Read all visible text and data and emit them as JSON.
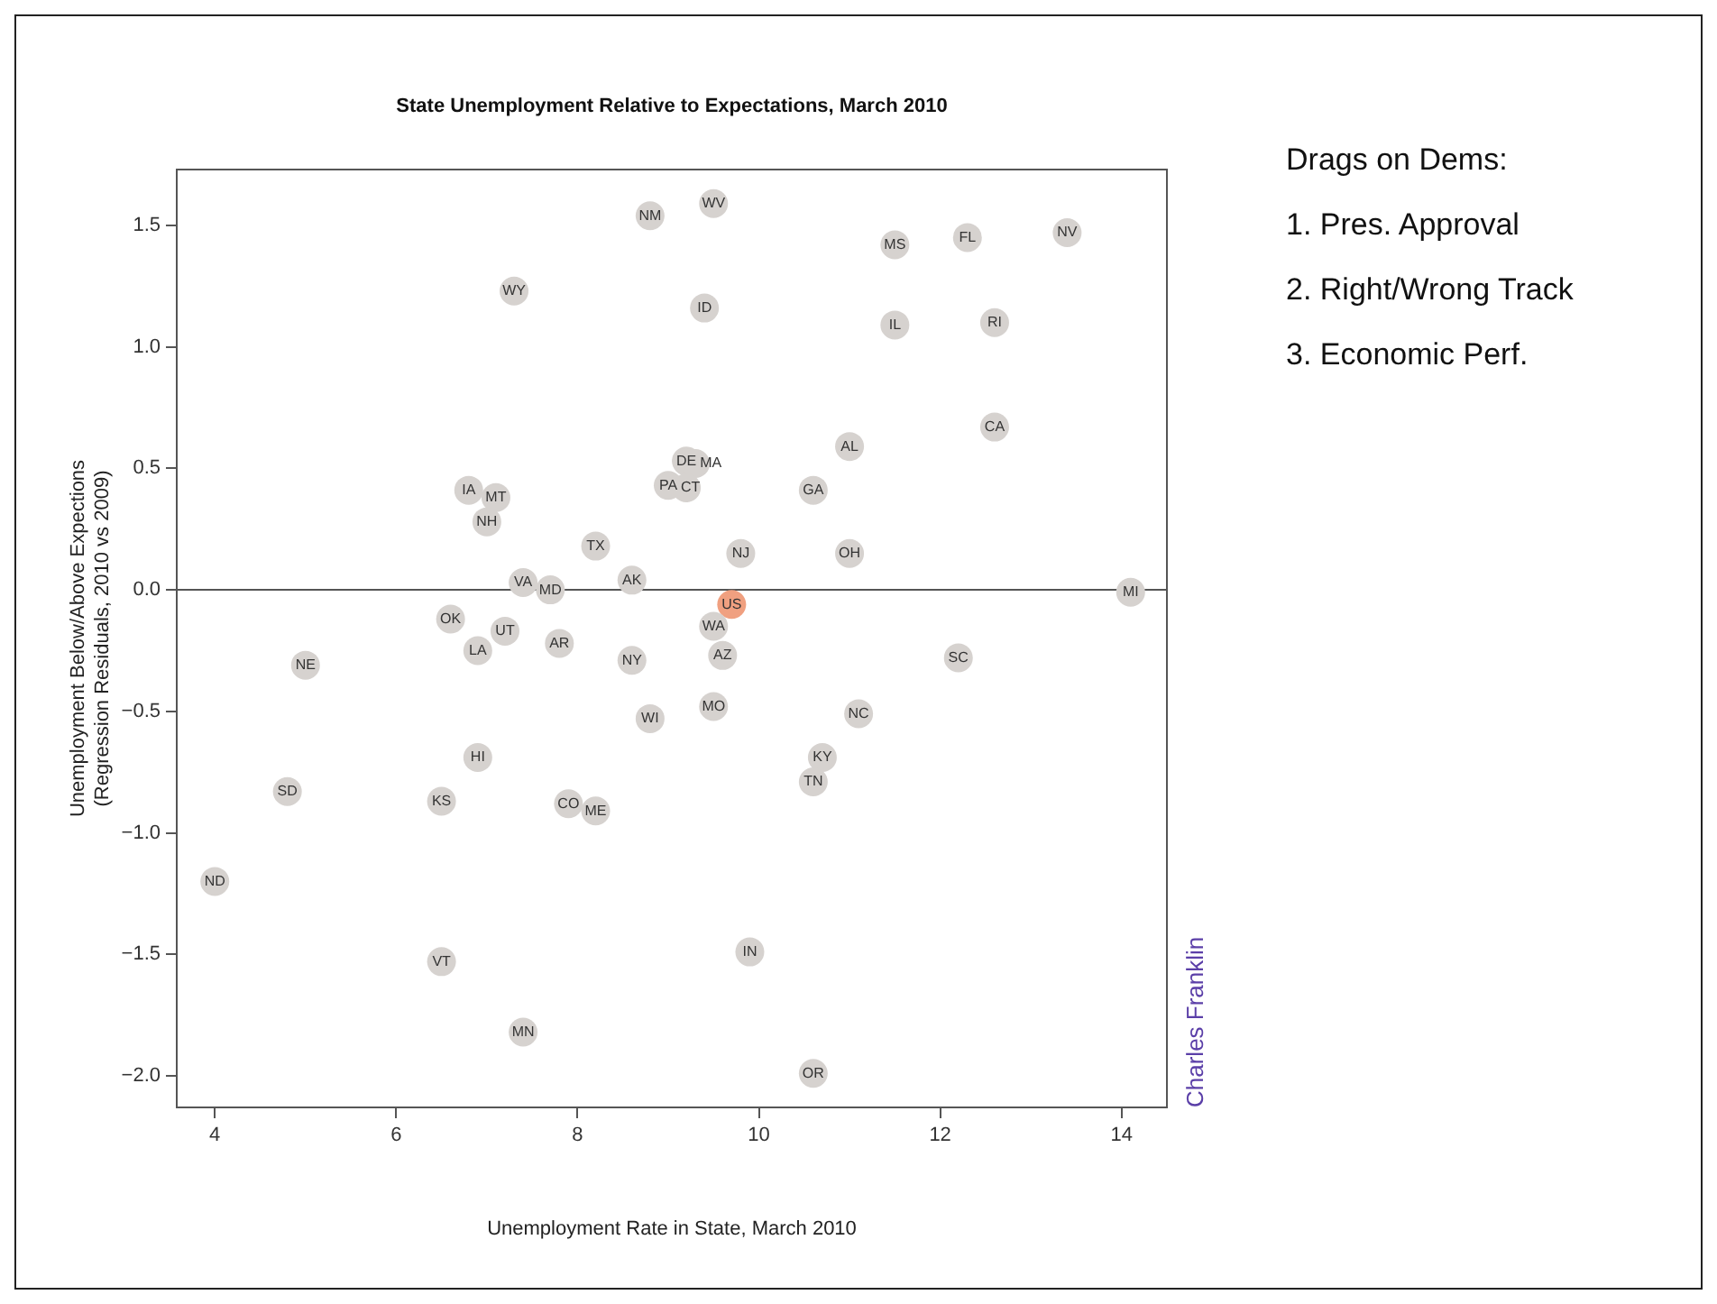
{
  "chart_data": {
    "type": "scatter",
    "title": "State Unemployment Relative to Expectations, March 2010",
    "xlabel": "Unemployment Rate in State, March 2010",
    "ylabel": "Unemployment Below/Above Expections\n(Regression Residuals, 2010 vs 2009)",
    "series": [
      {
        "color": "#d6d2cf",
        "x": [
          7.3,
          6.8,
          7.1,
          7.0,
          8.2,
          7.4,
          7.7,
          8.6,
          8.8,
          9.5,
          11.5,
          12.3,
          13.4,
          9.4,
          11.5,
          12.6,
          12.6,
          11.0,
          9.2,
          9.3,
          9.0,
          9.2,
          10.6,
          9.8,
          11.0,
          14.1,
          9.5,
          9.6,
          8.6,
          12.2,
          9.5,
          8.8,
          11.1,
          10.7,
          10.6,
          9.9,
          10.6,
          6.6,
          7.2,
          6.9,
          7.8,
          5.0,
          6.9,
          4.8,
          6.5,
          7.9,
          8.2,
          4.0,
          6.5,
          7.4
        ],
        "values": [
          1.23,
          0.41,
          0.38,
          0.28,
          0.18,
          0.03,
          0.0,
          0.04,
          1.54,
          1.59,
          1.42,
          1.45,
          1.47,
          1.16,
          1.09,
          1.1,
          0.67,
          0.59,
          0.53,
          0.52,
          0.43,
          0.42,
          0.41,
          0.15,
          0.15,
          -0.01,
          -0.15,
          -0.27,
          -0.29,
          -0.28,
          -0.48,
          -0.53,
          -0.51,
          -0.69,
          -0.79,
          -1.49,
          -1.99,
          -0.12,
          -0.17,
          -0.25,
          -0.22,
          -0.31,
          -0.69,
          -0.83,
          -0.87,
          -0.88,
          -0.91,
          -1.2,
          -1.53,
          -1.82
        ]
      },
      {
        "color": "#f0a080",
        "x": [
          9.7
        ],
        "values": [
          -0.06
        ]
      }
    ],
    "marker": "circle",
    "legend": false,
    "grid": false,
    "xlim": [
      3.58,
      14.5
    ],
    "xticks": [
      4,
      6,
      8,
      10,
      12,
      14
    ],
    "ylim": [
      -2.13,
      1.73
    ],
    "yticks": [
      {
        "value": -2,
        "label": "−2.0"
      },
      {
        "value": -1.5,
        "label": "−1.5"
      },
      {
        "value": -1,
        "label": "−1.0"
      },
      {
        "value": -0.5,
        "label": "−0.5"
      },
      {
        "value": 0,
        "label": "0.0"
      },
      {
        "value": 0.5,
        "label": "0.5"
      },
      {
        "value": 1,
        "label": "1.0"
      },
      {
        "value": 1.5,
        "label": "1.5"
      }
    ],
    "ref_lines": [
      {
        "axis": "y",
        "value": 0,
        "color": "#555555"
      }
    ],
    "annotations": [
      {
        "text": "WY",
        "x": 7.3,
        "y": 1.23
      },
      {
        "text": "IA",
        "x": 6.8,
        "y": 0.41
      },
      {
        "text": "MT",
        "x": 7.1,
        "y": 0.38
      },
      {
        "text": "NH",
        "x": 7.0,
        "y": 0.28
      },
      {
        "text": "TX",
        "x": 8.2,
        "y": 0.18
      },
      {
        "text": "VA",
        "x": 7.4,
        "y": 0.03
      },
      {
        "text": "MD",
        "x": 7.7,
        "y": 0.0
      },
      {
        "text": "AK",
        "x": 8.6,
        "y": 0.04
      },
      {
        "text": "NM",
        "x": 8.8,
        "y": 1.54
      },
      {
        "text": "WV",
        "x": 9.5,
        "y": 1.59
      },
      {
        "text": "MS",
        "x": 11.5,
        "y": 1.42
      },
      {
        "text": "FL",
        "x": 12.3,
        "y": 1.45
      },
      {
        "text": "NV",
        "x": 13.4,
        "y": 1.47
      },
      {
        "text": "ID",
        "x": 9.4,
        "y": 1.16
      },
      {
        "text": "IL",
        "x": 11.5,
        "y": 1.09
      },
      {
        "text": "RI",
        "x": 12.6,
        "y": 1.1
      },
      {
        "text": "CA",
        "x": 12.6,
        "y": 0.67
      },
      {
        "text": "AL",
        "x": 11.0,
        "y": 0.59
      },
      {
        "text": "DE",
        "x": 9.2,
        "y": 0.53
      },
      {
        "text": "MA",
        "x": 9.3,
        "y": 0.52
      },
      {
        "text": "PA",
        "x": 9.0,
        "y": 0.43
      },
      {
        "text": "CT",
        "x": 9.2,
        "y": 0.42
      },
      {
        "text": "GA",
        "x": 10.6,
        "y": 0.41
      },
      {
        "text": "NJ",
        "x": 9.8,
        "y": 0.15
      },
      {
        "text": "OH",
        "x": 11.0,
        "y": 0.15
      },
      {
        "text": "MI",
        "x": 14.1,
        "y": -0.01
      },
      {
        "text": "WA",
        "x": 9.5,
        "y": -0.15
      },
      {
        "text": "AZ",
        "x": 9.6,
        "y": -0.27
      },
      {
        "text": "NY",
        "x": 8.6,
        "y": -0.29
      },
      {
        "text": "SC",
        "x": 12.2,
        "y": -0.28
      },
      {
        "text": "MO",
        "x": 9.5,
        "y": -0.48
      },
      {
        "text": "WI",
        "x": 8.8,
        "y": -0.53
      },
      {
        "text": "NC",
        "x": 11.1,
        "y": -0.51
      },
      {
        "text": "KY",
        "x": 10.7,
        "y": -0.69
      },
      {
        "text": "TN",
        "x": 10.6,
        "y": -0.79
      },
      {
        "text": "IN",
        "x": 9.9,
        "y": -1.49
      },
      {
        "text": "OR",
        "x": 10.6,
        "y": -1.99
      },
      {
        "text": "OK",
        "x": 6.6,
        "y": -0.12
      },
      {
        "text": "UT",
        "x": 7.2,
        "y": -0.17
      },
      {
        "text": "LA",
        "x": 6.9,
        "y": -0.25
      },
      {
        "text": "AR",
        "x": 7.8,
        "y": -0.22
      },
      {
        "text": "NE",
        "x": 5.0,
        "y": -0.31
      },
      {
        "text": "HI",
        "x": 6.9,
        "y": -0.69
      },
      {
        "text": "SD",
        "x": 4.8,
        "y": -0.83
      },
      {
        "text": "KS",
        "x": 6.5,
        "y": -0.87
      },
      {
        "text": "CO",
        "x": 7.9,
        "y": -0.88
      },
      {
        "text": "ME",
        "x": 8.2,
        "y": -0.91
      },
      {
        "text": "ND",
        "x": 4.0,
        "y": -1.2
      },
      {
        "text": "VT",
        "x": 6.5,
        "y": -1.53
      },
      {
        "text": "MN",
        "x": 7.4,
        "y": -1.82
      },
      {
        "text": "US",
        "x": 9.7,
        "y": -0.06
      },
      "Drags on Dems:",
      "1.  Pres. Approval",
      "2.  Right/Wrong Track",
      "3.  Economic Perf.",
      "Charles Franklin"
    ]
  }
}
